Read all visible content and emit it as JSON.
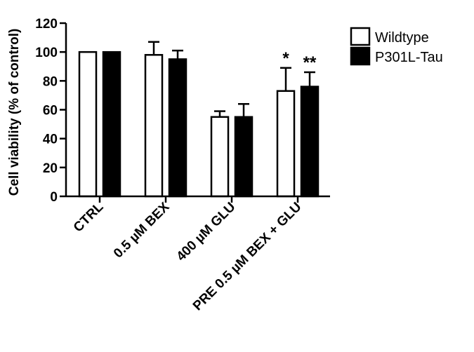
{
  "chart_data": {
    "type": "bar",
    "title": "",
    "xlabel": "",
    "ylabel": "Cell viability (% of control)",
    "ylim": [
      0,
      120
    ],
    "yticks": [
      0,
      20,
      40,
      60,
      80,
      100,
      120
    ],
    "categories": [
      "CTRL",
      "0.5 µM BEX",
      "400 µM GLU",
      "PRE 0.5 µM BEX + GLU"
    ],
    "series": [
      {
        "name": "Wildtype",
        "fill": "#ffffff",
        "values": [
          100,
          98,
          55,
          73
        ],
        "errors": [
          0,
          9,
          4,
          16
        ]
      },
      {
        "name": "P301L-Tau",
        "fill": "#000000",
        "values": [
          100,
          95,
          55,
          76
        ],
        "errors": [
          0,
          6,
          9,
          10
        ]
      }
    ],
    "annotations": [
      {
        "category": 3,
        "series": 0,
        "text": "*"
      },
      {
        "category": 3,
        "series": 1,
        "text": "**"
      }
    ],
    "legend_position": "top-right",
    "grid": false
  }
}
